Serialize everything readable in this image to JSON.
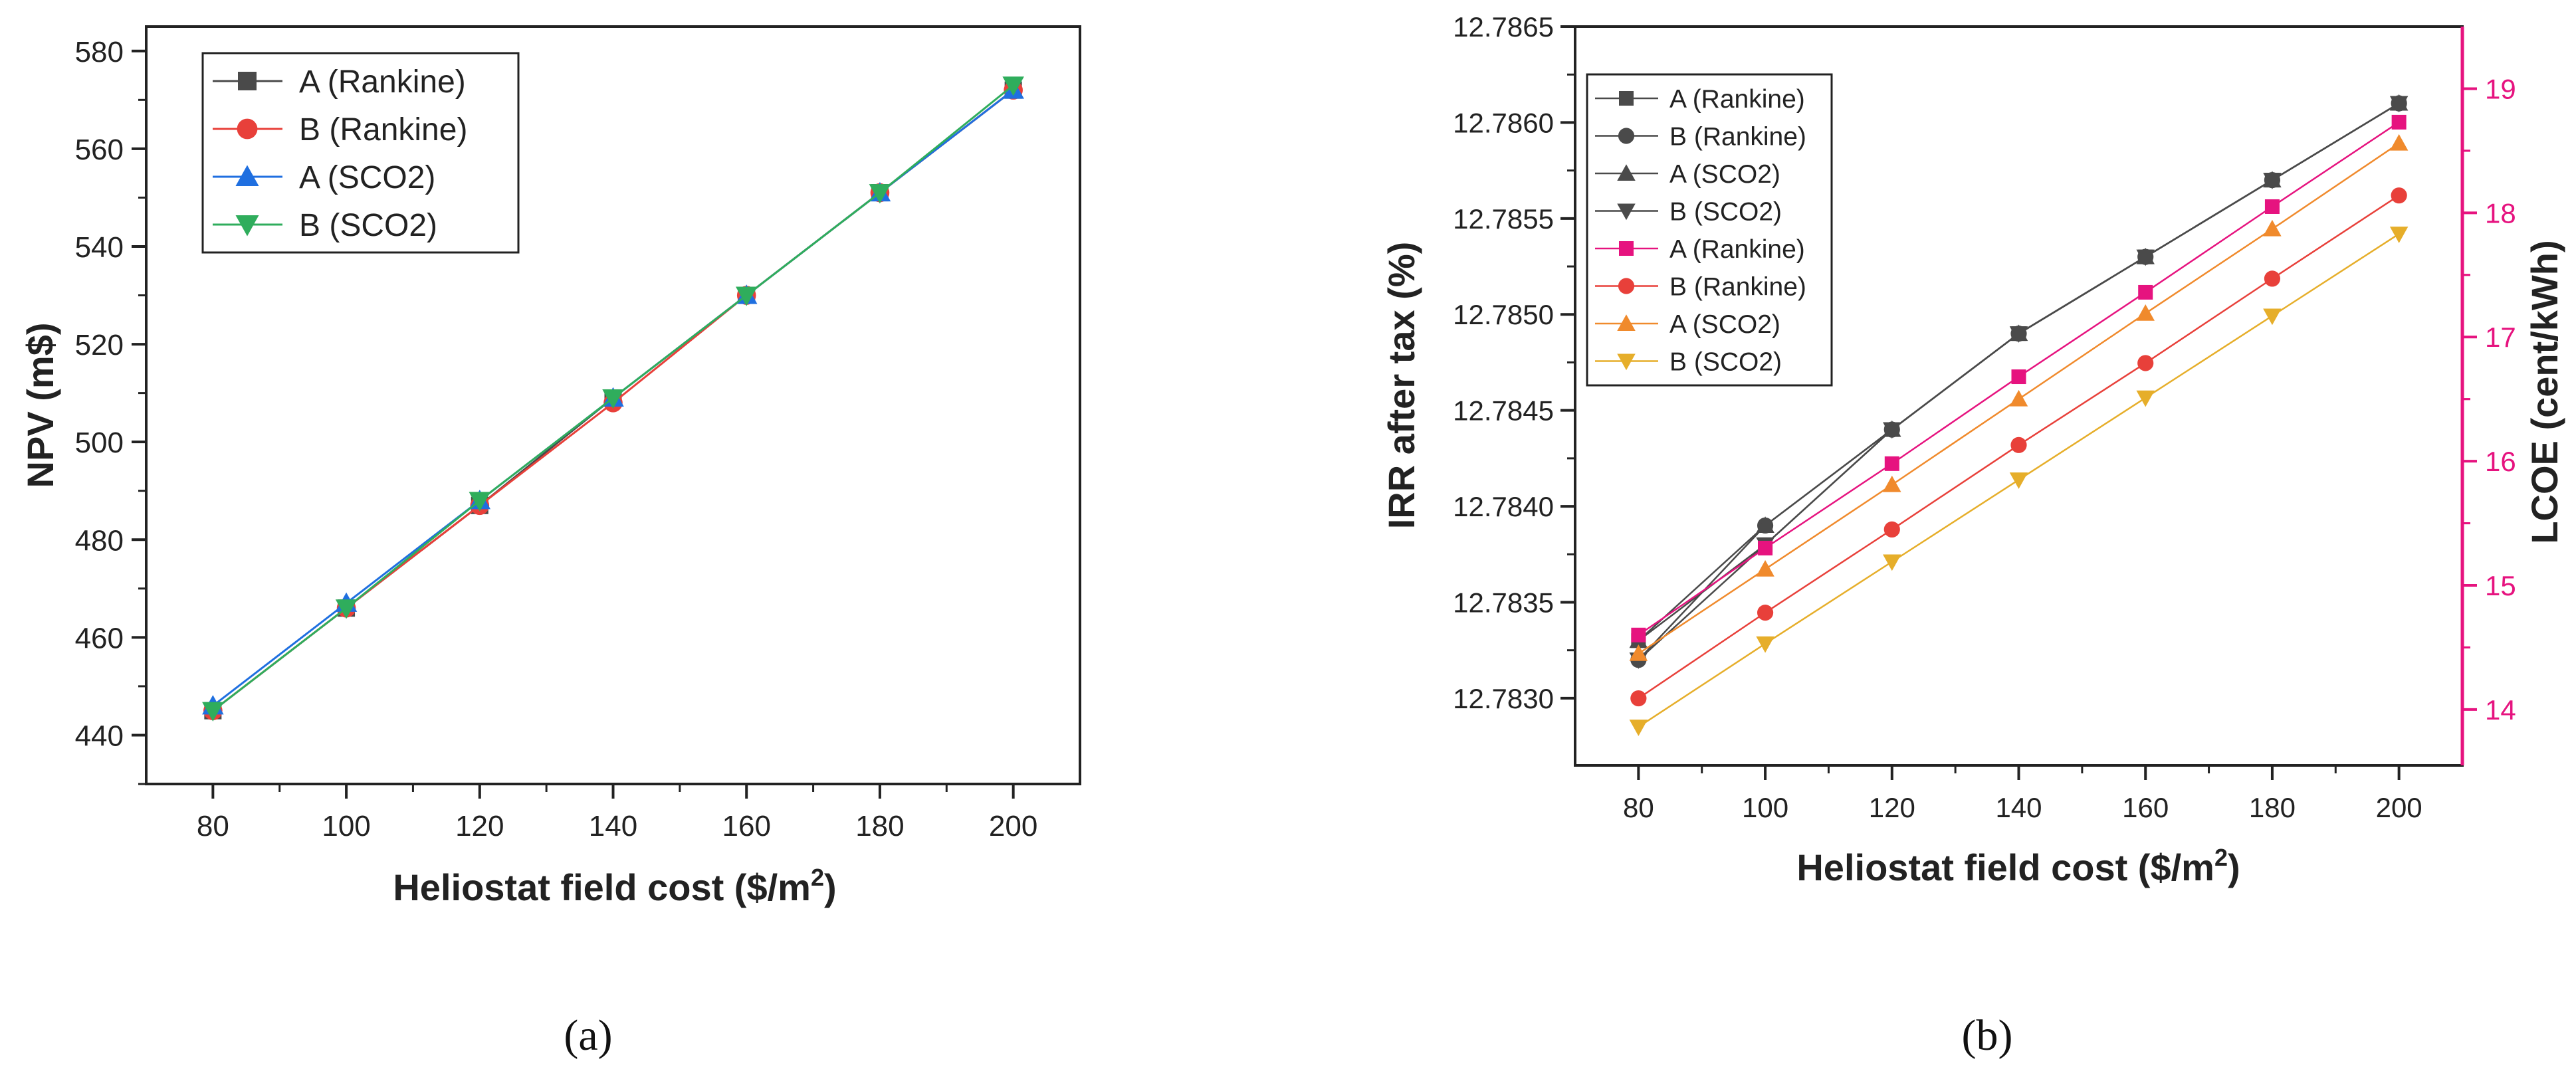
{
  "figure": {
    "panel_labels": [
      "(a)",
      "(b)"
    ]
  },
  "chart_data": [
    {
      "type": "line",
      "panel": "(a)",
      "xlabel": "Heliostat field cost ($/m",
      "xlabel_sup": "2",
      "xlabel_suffix": ")",
      "ylabel": "NPV (m$)",
      "xlim": [
        70,
        210
      ],
      "ylim": [
        430,
        585
      ],
      "xticks": [
        80,
        100,
        120,
        140,
        160,
        180,
        200
      ],
      "yticks": [
        440,
        460,
        480,
        500,
        520,
        540,
        560,
        580
      ],
      "legend_position": "top-left",
      "x": [
        80,
        100,
        120,
        140,
        160,
        180,
        200
      ],
      "series": [
        {
          "name": "A (Rankine)",
          "color": "#4a4a4a",
          "marker": "square",
          "values": [
            445,
            466,
            487,
            509,
            530,
            551,
            572
          ]
        },
        {
          "name": "B (Rankine)",
          "color": "#e8403a",
          "marker": "circle",
          "values": [
            445,
            466,
            487,
            508,
            530,
            551,
            572
          ]
        },
        {
          "name": "A (SCO2)",
          "color": "#1f6fe0",
          "marker": "triangle-up",
          "values": [
            446,
            467,
            488,
            509,
            530,
            551,
            572
          ]
        },
        {
          "name": "B (SCO2)",
          "color": "#2fad5c",
          "marker": "triangle-down",
          "values": [
            445,
            466,
            488,
            509,
            530,
            551,
            573
          ]
        }
      ]
    },
    {
      "type": "line",
      "panel": "(b)",
      "xlabel": "Heliostat field cost ($/m",
      "xlabel_sup": "2",
      "xlabel_suffix": ")",
      "ylabel": "IRR after tax (%)",
      "y2label": "LCOE (cent/kWh)",
      "y2color": "#e6137f",
      "xlim": [
        70,
        210
      ],
      "ylim": [
        12.78265,
        12.7865
      ],
      "y2lim": [
        13.55,
        19.5
      ],
      "xticks": [
        80,
        100,
        120,
        140,
        160,
        180,
        200
      ],
      "yticks": [
        "12.7830",
        "12.7835",
        "12.7840",
        "12.7845",
        "12.7850",
        "12.7855",
        "12.7860",
        "12.7865"
      ],
      "y2ticks": [
        14,
        15,
        16,
        17,
        18,
        19
      ],
      "legend_position": "top-left",
      "x": [
        80,
        100,
        120,
        140,
        160,
        180,
        200
      ],
      "series": [
        {
          "name": "A (Rankine)",
          "axis": "left",
          "color": "#4a4a4a",
          "marker": "square",
          "values": [
            12.7833,
            12.7838,
            12.7844,
            12.7849,
            12.7853,
            12.7857,
            12.7861
          ]
        },
        {
          "name": "B (Rankine)",
          "axis": "left",
          "color": "#4a4a4a",
          "marker": "circle",
          "values": [
            12.7832,
            12.7839,
            12.7844,
            12.7849,
            12.7853,
            12.7857,
            12.7861
          ]
        },
        {
          "name": "A (SCO2)",
          "axis": "left",
          "color": "#4a4a4a",
          "marker": "triangle-up",
          "values": [
            12.7833,
            12.7839,
            12.7844,
            12.7849,
            12.7853,
            12.7857,
            12.7861
          ]
        },
        {
          "name": "B (SCO2)",
          "axis": "left",
          "color": "#4a4a4a",
          "marker": "triangle-down",
          "values": [
            12.7832,
            12.7838,
            12.7844,
            12.7849,
            12.7853,
            12.7857,
            12.7861
          ]
        },
        {
          "name": "A (Rankine)",
          "axis": "right",
          "color": "#e6137f",
          "marker": "square",
          "values": [
            14.6,
            15.3,
            15.98,
            16.68,
            17.36,
            18.05,
            18.73
          ]
        },
        {
          "name": "B (Rankine)",
          "axis": "right",
          "color": "#e8403a",
          "marker": "circle",
          "values": [
            14.09,
            14.78,
            15.45,
            16.13,
            16.79,
            17.47,
            18.14
          ]
        },
        {
          "name": "A (SCO2)",
          "axis": "right",
          "color": "#f08a2c",
          "marker": "triangle-up",
          "values": [
            14.45,
            15.13,
            15.81,
            16.5,
            17.19,
            17.87,
            18.56
          ]
        },
        {
          "name": "B (SCO2)",
          "axis": "right",
          "color": "#e6ae2a",
          "marker": "triangle-down",
          "values": [
            13.86,
            14.53,
            15.19,
            15.85,
            16.51,
            17.17,
            17.83
          ]
        }
      ]
    }
  ]
}
